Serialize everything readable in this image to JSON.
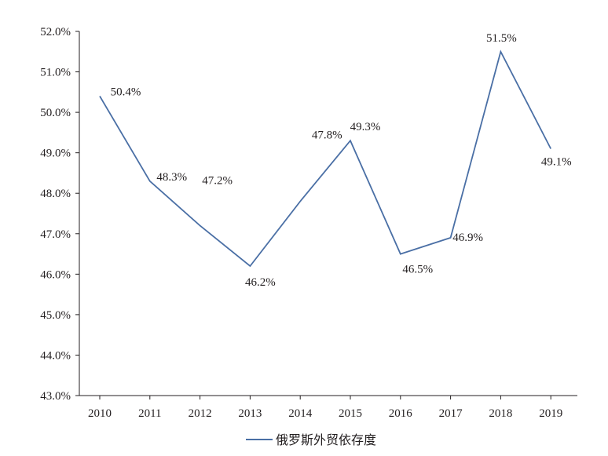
{
  "chart_data": {
    "type": "line",
    "x": [
      "2010",
      "2011",
      "2012",
      "2013",
      "2014",
      "2015",
      "2016",
      "2017",
      "2018",
      "2019"
    ],
    "series": [
      {
        "name": "俄罗斯外贸依存度",
        "values": [
          50.4,
          48.3,
          47.2,
          46.2,
          47.8,
          49.3,
          46.5,
          46.9,
          51.5,
          49.1
        ],
        "labels": [
          "50.4%",
          "48.3%",
          "47.2%",
          "46.2%",
          "47.8%",
          "49.3%",
          "46.5%",
          "46.9%",
          "51.5%",
          "49.1%"
        ],
        "color": "#4a6fa5"
      }
    ],
    "y_ticks": [
      "43.0%",
      "44.0%",
      "45.0%",
      "46.0%",
      "47.0%",
      "48.0%",
      "49.0%",
      "50.0%",
      "51.0%",
      "52.0%"
    ],
    "ylim": [
      43,
      52
    ],
    "title": "",
    "xlabel": "",
    "ylabel": "",
    "grid": false,
    "legend_position": "bottom-center"
  }
}
